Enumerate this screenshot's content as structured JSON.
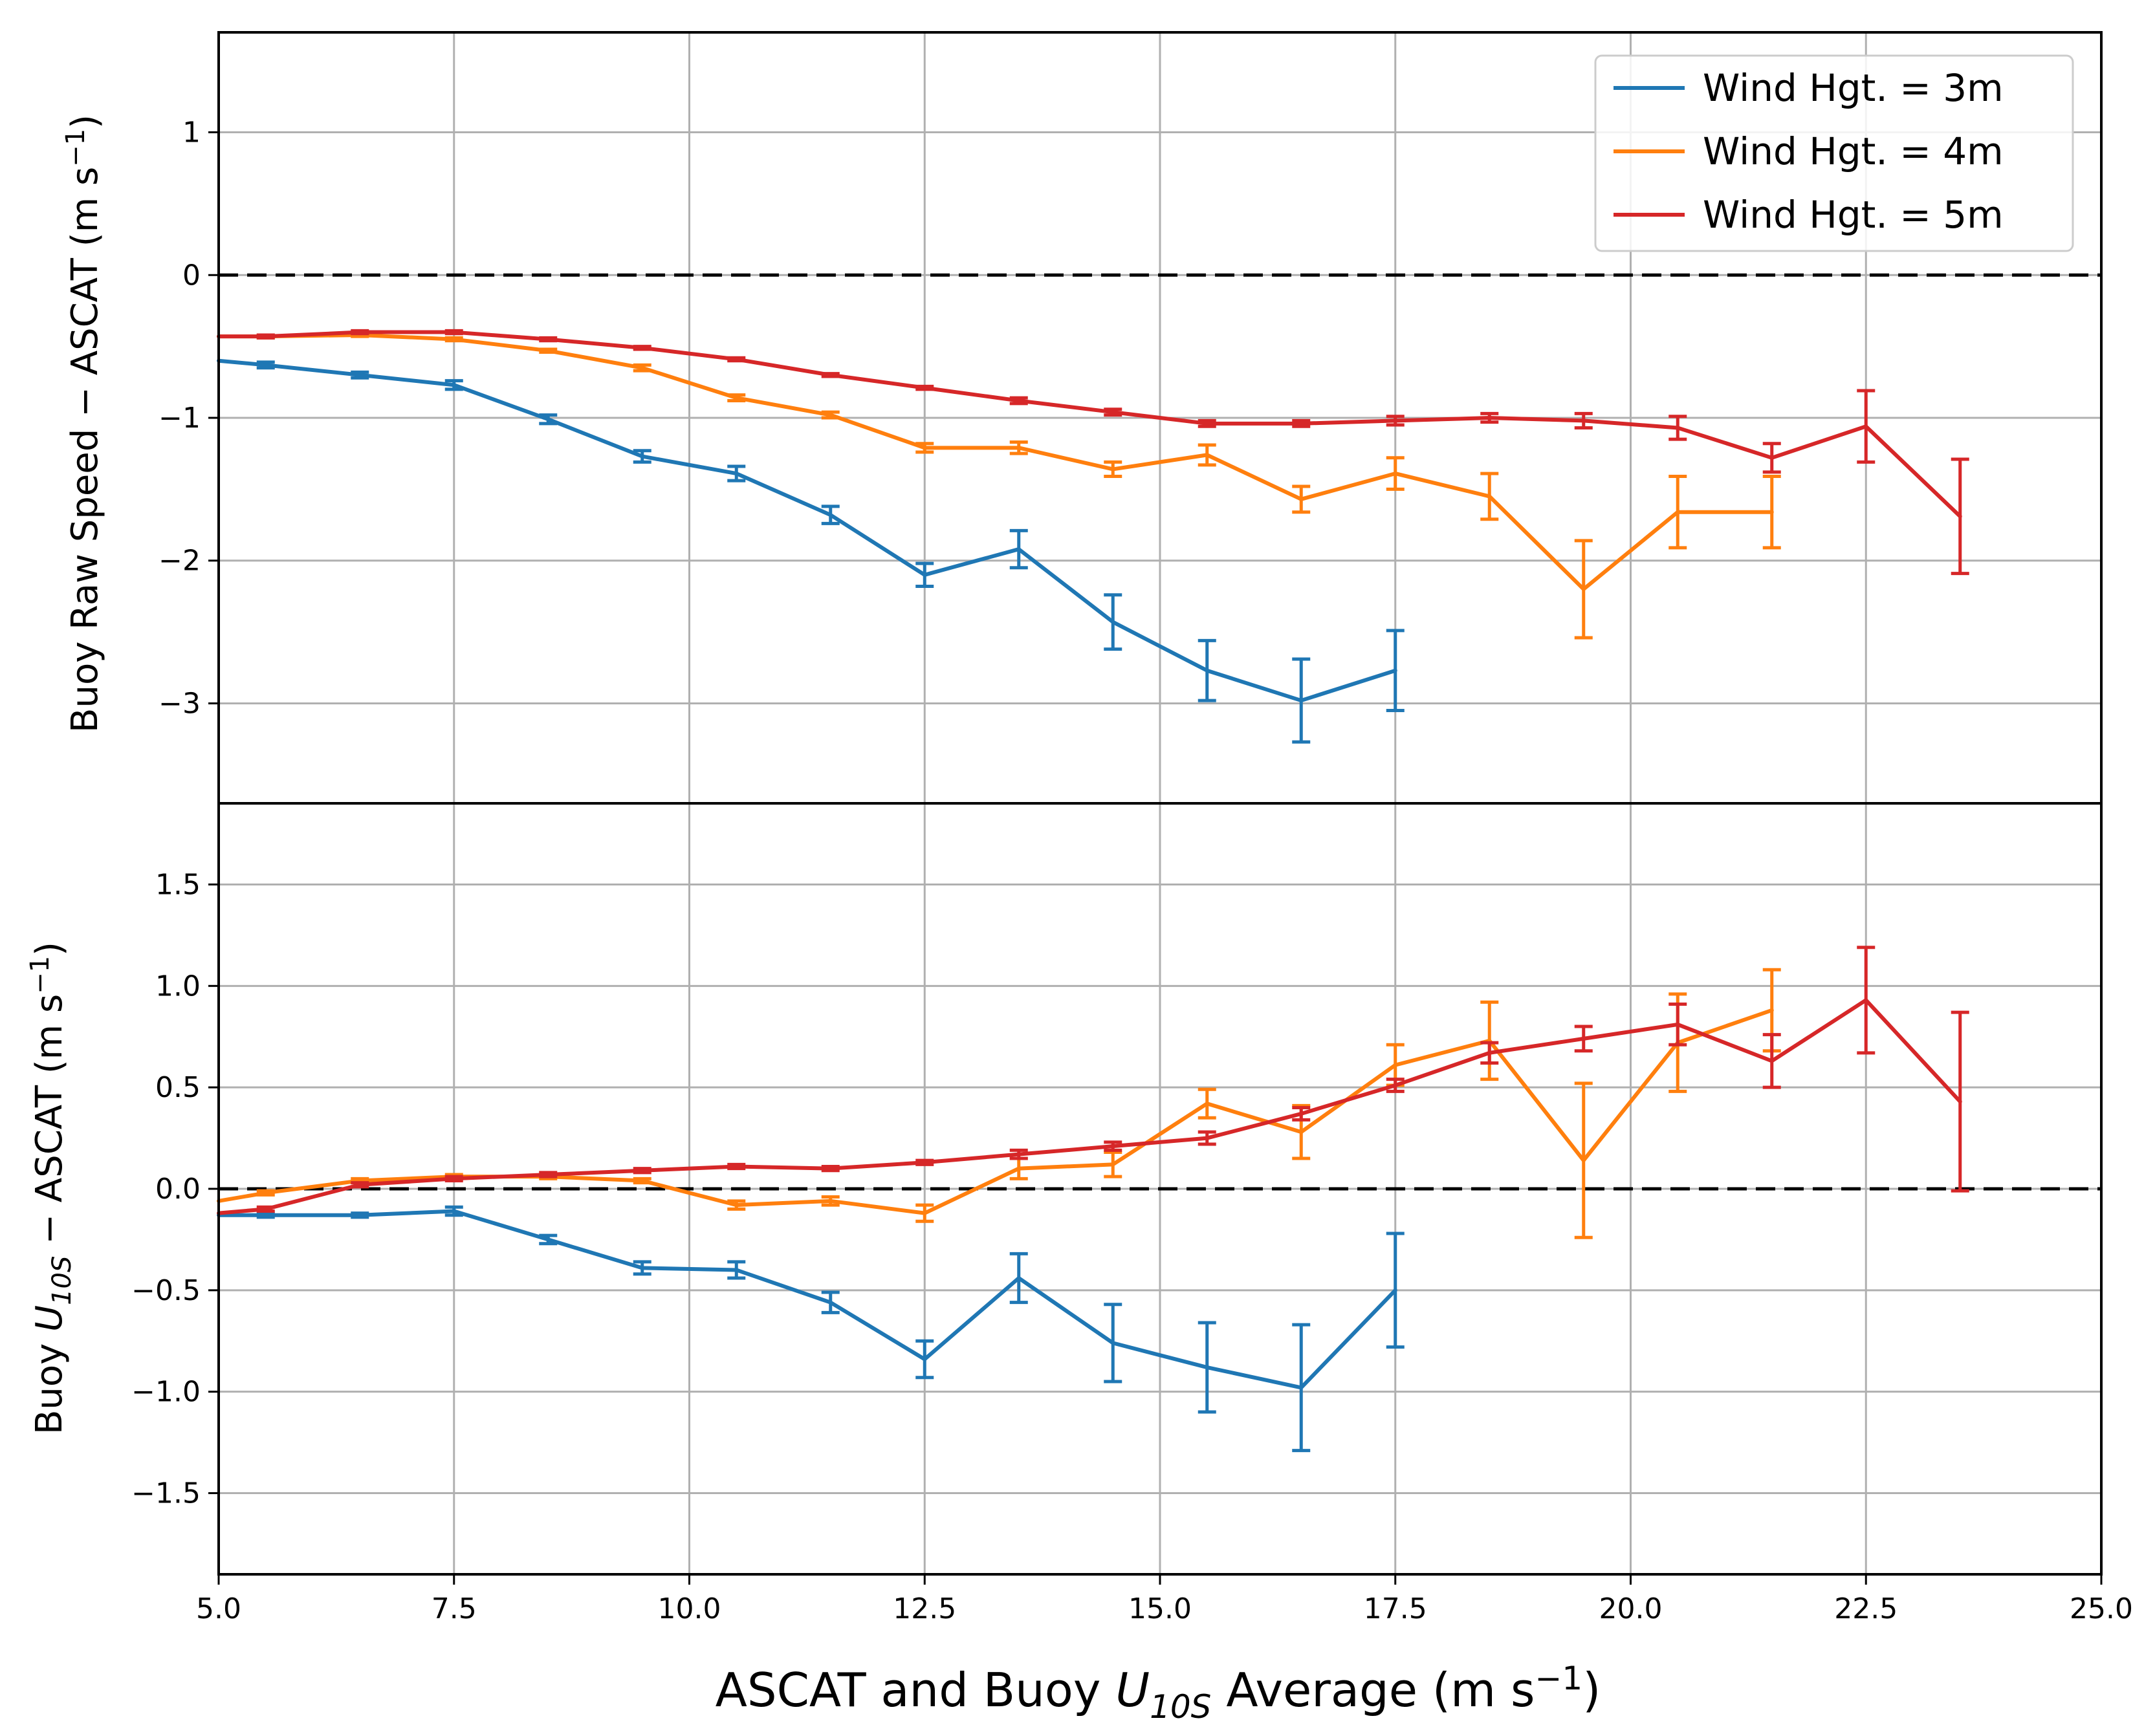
{
  "chart_data": [
    {
      "type": "line",
      "panel": "top",
      "ylabel_main": "Buoy Raw Speed − ASCAT (m s",
      "ylabel_sup": "−1",
      "ylabel_close": ")",
      "xlim": [
        5.0,
        25.0
      ],
      "ylim": [
        -3.7,
        1.7
      ],
      "yticks": [
        1,
        0,
        -1,
        -2,
        -3
      ],
      "ytick_labels": [
        "1",
        "0",
        "−1",
        "−2",
        "−3"
      ],
      "reference_line": 0,
      "grid": true,
      "series": [
        {
          "name": "Wind Hgt. = 3m",
          "color": "#1f77b4",
          "x": [
            5.0,
            5.5,
            6.5,
            7.5,
            8.5,
            9.5,
            10.5,
            11.5,
            12.5,
            13.5,
            14.5,
            15.5,
            16.5,
            17.5
          ],
          "y": [
            -0.6,
            -0.63,
            -0.7,
            -0.77,
            -1.01,
            -1.27,
            -1.39,
            -1.68,
            -2.1,
            -1.92,
            -2.43,
            -2.77,
            -2.98,
            -2.77
          ],
          "err": [
            0,
            0.02,
            0.02,
            0.03,
            0.03,
            0.04,
            0.05,
            0.06,
            0.08,
            0.13,
            0.19,
            0.21,
            0.29,
            0.28
          ]
        },
        {
          "name": "Wind Hgt. = 4m",
          "color": "#ff7f0e",
          "x": [
            5.0,
            5.5,
            6.5,
            7.5,
            8.5,
            9.5,
            10.5,
            11.5,
            12.5,
            13.5,
            14.5,
            15.5,
            16.5,
            17.5,
            18.5,
            19.5,
            20.5,
            21.5
          ],
          "y": [
            -0.43,
            -0.43,
            -0.42,
            -0.45,
            -0.53,
            -0.65,
            -0.86,
            -0.98,
            -1.21,
            -1.21,
            -1.36,
            -1.26,
            -1.57,
            -1.39,
            -1.55,
            -2.2,
            -1.66,
            -1.66
          ],
          "err": [
            0,
            0.01,
            0.01,
            0.01,
            0.01,
            0.02,
            0.02,
            0.02,
            0.03,
            0.04,
            0.05,
            0.07,
            0.09,
            0.11,
            0.16,
            0.34,
            0.25,
            0.25
          ]
        },
        {
          "name": "Wind Hgt. = 5m",
          "color": "#d62728",
          "x": [
            5.0,
            5.5,
            6.5,
            7.5,
            8.5,
            9.5,
            10.5,
            11.5,
            12.5,
            13.5,
            14.5,
            15.5,
            16.5,
            17.5,
            18.5,
            19.5,
            20.5,
            21.5,
            22.5,
            23.5
          ],
          "y": [
            -0.43,
            -0.43,
            -0.4,
            -0.4,
            -0.45,
            -0.51,
            -0.59,
            -0.7,
            -0.79,
            -0.88,
            -0.96,
            -1.04,
            -1.04,
            -1.02,
            -1.0,
            -1.02,
            -1.07,
            -1.28,
            -1.06,
            -1.69
          ],
          "err": [
            0,
            0.01,
            0.01,
            0.01,
            0.01,
            0.01,
            0.01,
            0.01,
            0.01,
            0.02,
            0.02,
            0.02,
            0.02,
            0.03,
            0.03,
            0.05,
            0.08,
            0.1,
            0.25,
            0.4
          ]
        }
      ]
    },
    {
      "type": "line",
      "panel": "bottom",
      "ylabel_pre": "Buoy ",
      "ylabel_var": "U",
      "ylabel_sub": "10S",
      "ylabel_mid": " − ASCAT (m s",
      "ylabel_sup": "−1",
      "ylabel_close": ")",
      "xlim": [
        5.0,
        25.0
      ],
      "ylim": [
        -1.9,
        1.9
      ],
      "yticks": [
        1.5,
        1.0,
        0.5,
        0.0,
        -0.5,
        -1.0,
        -1.5
      ],
      "ytick_labels": [
        "1.5",
        "1.0",
        "0.5",
        "0.0",
        "−0.5",
        "−1.0",
        "−1.5"
      ],
      "reference_line": 0,
      "grid": true,
      "series": [
        {
          "name": "Wind Hgt. = 3m",
          "color": "#1f77b4",
          "x": [
            5.0,
            5.5,
            6.5,
            7.5,
            8.5,
            9.5,
            10.5,
            11.5,
            12.5,
            13.5,
            14.5,
            15.5,
            16.5,
            17.5
          ],
          "y": [
            -0.13,
            -0.13,
            -0.13,
            -0.11,
            -0.25,
            -0.39,
            -0.4,
            -0.56,
            -0.84,
            -0.44,
            -0.76,
            -0.88,
            -0.98,
            -0.5
          ],
          "err": [
            0,
            0.01,
            0.01,
            0.02,
            0.02,
            0.03,
            0.04,
            0.05,
            0.09,
            0.12,
            0.19,
            0.22,
            0.31,
            0.28
          ]
        },
        {
          "name": "Wind Hgt. = 4m",
          "color": "#ff7f0e",
          "x": [
            5.0,
            5.5,
            6.5,
            7.5,
            8.5,
            9.5,
            10.5,
            11.5,
            12.5,
            13.5,
            14.5,
            15.5,
            16.5,
            17.5,
            18.5,
            19.5,
            20.5,
            21.5
          ],
          "y": [
            -0.06,
            -0.02,
            0.04,
            0.06,
            0.06,
            0.04,
            -0.08,
            -0.06,
            -0.12,
            0.1,
            0.12,
            0.42,
            0.28,
            0.61,
            0.73,
            0.14,
            0.72,
            0.88
          ],
          "err": [
            0,
            0.01,
            0.01,
            0.01,
            0.01,
            0.01,
            0.02,
            0.02,
            0.04,
            0.05,
            0.06,
            0.07,
            0.13,
            0.1,
            0.19,
            0.38,
            0.24,
            0.2
          ]
        },
        {
          "name": "Wind Hgt. = 5m",
          "color": "#d62728",
          "x": [
            5.0,
            5.5,
            6.5,
            7.5,
            8.5,
            9.5,
            10.5,
            11.5,
            12.5,
            13.5,
            14.5,
            15.5,
            16.5,
            17.5,
            18.5,
            19.5,
            20.5,
            21.5,
            22.5,
            23.5
          ],
          "y": [
            -0.12,
            -0.1,
            0.02,
            0.05,
            0.07,
            0.09,
            0.11,
            0.1,
            0.13,
            0.17,
            0.21,
            0.25,
            0.37,
            0.51,
            0.67,
            0.74,
            0.81,
            0.63,
            0.93,
            0.43
          ],
          "err": [
            0,
            0.01,
            0.01,
            0.01,
            0.01,
            0.01,
            0.01,
            0.01,
            0.01,
            0.02,
            0.02,
            0.03,
            0.03,
            0.03,
            0.05,
            0.06,
            0.1,
            0.13,
            0.26,
            0.44
          ]
        }
      ]
    }
  ],
  "shared_x": {
    "xticks": [
      5.0,
      7.5,
      10.0,
      12.5,
      15.0,
      17.5,
      20.0,
      22.5,
      25.0
    ],
    "xtick_labels": [
      "5.0",
      "7.5",
      "10.0",
      "12.5",
      "15.0",
      "17.5",
      "20.0",
      "22.5",
      "25.0"
    ],
    "xlabel_pre": "ASCAT and Buoy ",
    "xlabel_var": "U",
    "xlabel_sub": "10S",
    "xlabel_post": " Average (m s",
    "xlabel_sup": "−1",
    "xlabel_close": ")"
  },
  "legend": {
    "placement": "top-right of top panel",
    "entries": [
      {
        "label": "Wind Hgt. = 3m",
        "color": "#1f77b4"
      },
      {
        "label": "Wind Hgt. = 4m",
        "color": "#ff7f0e"
      },
      {
        "label": "Wind Hgt. = 5m",
        "color": "#d62728"
      }
    ]
  }
}
